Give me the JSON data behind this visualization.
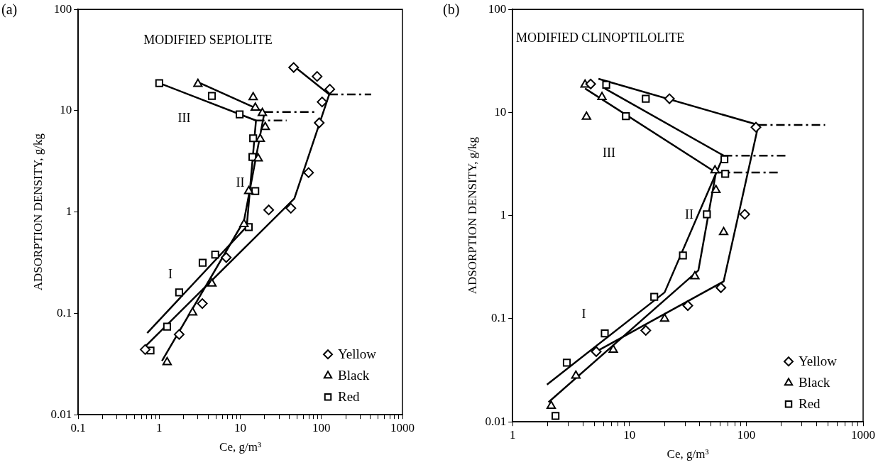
{
  "chart_data": [
    {
      "type": "scatter",
      "title": "(a)",
      "xlabel": "Ce, g/m³",
      "ylabel": "ADSORPTION DENSITY, g/kg",
      "log": "xy",
      "grid": false,
      "legend": "bottom right",
      "annotations": [
        "MODIFIED SEPIOLITE",
        "III",
        "II",
        "I"
      ],
      "xlim": [
        0.1,
        1000
      ],
      "ylim": [
        0.01,
        100
      ],
      "xticks": [
        0.1,
        {
          "value": 0.2,
          "label": null
        },
        {
          "value": 0.3,
          "label": null
        },
        {
          "value": 0.4,
          "label": null
        },
        {
          "value": 0.5,
          "label": null
        },
        {
          "value": 0.6,
          "label": null
        },
        {
          "value": 0.7,
          "label": null
        },
        {
          "value": 0.8,
          "label": null
        },
        {
          "value": 0.9,
          "label": null
        },
        1,
        {
          "value": 2,
          "label": null
        },
        {
          "value": 3,
          "label": null
        },
        {
          "value": 4,
          "label": null
        },
        {
          "value": 5,
          "label": null
        },
        {
          "value": 6,
          "label": null
        },
        {
          "value": 7,
          "label": null
        },
        {
          "value": 8,
          "label": null
        },
        {
          "value": 9,
          "label": null
        },
        10,
        {
          "value": 20,
          "label": null
        },
        {
          "value": 30,
          "label": null
        },
        {
          "value": 40,
          "label": null
        },
        {
          "value": 50,
          "label": null
        },
        {
          "value": 60,
          "label": null
        },
        {
          "value": 70,
          "label": null
        },
        {
          "value": 80,
          "label": null
        },
        {
          "value": 90,
          "label": null
        },
        100,
        {
          "value": 200,
          "label": null
        },
        {
          "value": 300,
          "label": null
        },
        {
          "value": 400,
          "label": null
        },
        {
          "value": 500,
          "label": null
        },
        {
          "value": 600,
          "label": null
        },
        {
          "value": 700,
          "label": null
        },
        {
          "value": 800,
          "label": null
        },
        {
          "value": 900,
          "label": null
        },
        1000
      ],
      "yticks": [
        0.01,
        0.1,
        1,
        10,
        100
      ],
      "series": [
        {
          "name": "Yellow",
          "type": "scatter",
          "marker": "diamond",
          "color": "#000000",
          "x": [
            45.5,
            88.5,
            127,
            102,
            94,
            69.5,
            42,
            22.4,
            6.7,
            3.4,
            1.76,
            0.67
          ],
          "values": [
            26.7,
            21.8,
            16.3,
            12.2,
            7.6,
            2.45,
            1.09,
            1.05,
            0.356,
            0.125,
            0.062,
            0.044
          ]
        },
        {
          "name": "Black",
          "type": "scatter",
          "marker": "triangle",
          "color": "#000000",
          "x": [
            3.0,
            14.4,
            15.3,
            18.7,
            20.3,
            17.6,
            16.6,
            12.7,
            11.1,
            4.46,
            2.58,
            1.25
          ],
          "values": [
            18.4,
            13.6,
            10.7,
            9.5,
            6.9,
            5.26,
            3.38,
            1.61,
            0.76,
            0.197,
            0.102,
            0.033
          ]
        },
        {
          "name": "Red",
          "type": "scatter",
          "marker": "square",
          "color": "#000000",
          "x": [
            1.0,
            4.46,
            9.8,
            14.4,
            14.1,
            15.3,
            12.7,
            4.9,
            3.43,
            1.76,
            1.25,
            0.78
          ],
          "values": [
            18.7,
            14.0,
            9.2,
            5.35,
            3.5,
            1.61,
            0.71,
            0.38,
            0.316,
            0.161,
            0.074,
            0.043
          ]
        },
        {
          "type": "line",
          "line_style": "solid",
          "color": "#000000",
          "x": [
            45.5,
            125,
            46.4,
            0.65
          ],
          "values": [
            27.6,
            14.5,
            1.36,
            0.046
          ]
        },
        {
          "type": "line",
          "line_style": "dashed",
          "color": "#000000",
          "x": [
            125,
            411
          ],
          "values": [
            14.5,
            14.5
          ]
        },
        {
          "type": "line",
          "line_style": "solid",
          "color": "#000000",
          "x": [
            3.2,
            19.9,
            11.1,
            1.08
          ],
          "values": [
            18.7,
            9.7,
            0.82,
            0.034
          ]
        },
        {
          "type": "line",
          "line_style": "dashed",
          "color": "#000000",
          "x": [
            19.9,
            81.7
          ],
          "values": [
            9.7,
            9.7
          ]
        },
        {
          "type": "line",
          "line_style": "solid",
          "color": "#000000",
          "x": [
            1.06,
            15.6,
            12.0,
            0.71
          ],
          "values": [
            18.4,
            8.0,
            0.72,
            0.064
          ]
        },
        {
          "type": "line",
          "line_style": "dashed",
          "color": "#000000",
          "x": [
            15.6,
            37.2
          ],
          "values": [
            8.0,
            8.0
          ]
        }
      ]
    },
    {
      "type": "scatter",
      "title": "(b)",
      "xlabel": "Ce, g/m³",
      "ylabel": "ADSORPTION DENSITY, g/kg",
      "log": "xy",
      "grid": false,
      "legend": "bottom right",
      "annotations": [
        "MODIFIED CLINOPTILOLITE",
        "III",
        "II",
        "I"
      ],
      "xlim": [
        1,
        1000
      ],
      "ylim": [
        0.01,
        100
      ],
      "xticks": [
        1,
        {
          "value": 2,
          "label": null
        },
        {
          "value": 3,
          "label": null
        },
        {
          "value": 4,
          "label": null
        },
        {
          "value": 5,
          "label": null
        },
        {
          "value": 6,
          "label": null
        },
        {
          "value": 7,
          "label": null
        },
        {
          "value": 8,
          "label": null
        },
        {
          "value": 9,
          "label": null
        },
        10,
        {
          "value": 20,
          "label": null
        },
        {
          "value": 30,
          "label": null
        },
        {
          "value": 40,
          "label": null
        },
        {
          "value": 50,
          "label": null
        },
        {
          "value": 60,
          "label": null
        },
        {
          "value": 70,
          "label": null
        },
        {
          "value": 80,
          "label": null
        },
        {
          "value": 90,
          "label": null
        },
        100,
        {
          "value": 200,
          "label": null
        },
        {
          "value": 300,
          "label": null
        },
        {
          "value": 400,
          "label": null
        },
        {
          "value": 500,
          "label": null
        },
        {
          "value": 600,
          "label": null
        },
        {
          "value": 700,
          "label": null
        },
        {
          "value": 800,
          "label": null
        },
        {
          "value": 900,
          "label": null
        },
        1000
      ],
      "yticks": [
        0.01,
        0.1,
        1,
        10,
        100
      ],
      "series": [
        {
          "name": "Yellow",
          "type": "scatter",
          "marker": "diamond",
          "color": "#000000",
          "x": [
            4.66,
            22,
            121,
            97,
            60.7,
            31.6,
            13.8,
            5.2
          ],
          "values": [
            18.9,
            13.6,
            7.2,
            1.03,
            0.2,
            0.134,
            0.077,
            0.048
          ]
        },
        {
          "name": "Black",
          "type": "scatter",
          "marker": "triangle",
          "color": "#000000",
          "x": [
            4.17,
            5.82,
            4.29,
            54,
            55,
            64,
            36.3,
            20,
            7.27,
            3.48,
            2.14
          ],
          "values": [
            18.6,
            14.1,
            9.1,
            2.75,
            1.77,
            0.69,
            0.258,
            0.1,
            0.05,
            0.028,
            0.0143
          ]
        },
        {
          "name": "Red",
          "type": "scatter",
          "marker": "square",
          "color": "#000000",
          "x": [
            6.33,
            13.8,
            9.33,
            65,
            66,
            46,
            28.7,
            16.3,
            6.15,
            2.91,
            2.33
          ],
          "values": [
            18.6,
            13.6,
            9.2,
            3.52,
            2.54,
            1.03,
            0.41,
            0.163,
            0.072,
            0.0375,
            0.0114
          ]
        },
        {
          "type": "line",
          "line_style": "solid",
          "color": "#000000",
          "x": [
            5.43,
            127,
            64,
            4.86
          ],
          "values": [
            21.2,
            7.57,
            0.23,
            0.046
          ]
        },
        {
          "type": "line",
          "line_style": "dashed",
          "color": "#000000",
          "x": [
            127,
            473
          ],
          "values": [
            7.57,
            7.57
          ]
        },
        {
          "type": "line",
          "line_style": "solid",
          "color": "#000000",
          "x": [
            6.15,
            64,
            20,
            1.97
          ],
          "values": [
            17.1,
            3.82,
            0.18,
            0.023
          ]
        },
        {
          "type": "line",
          "line_style": "dashed",
          "color": "#000000",
          "x": [
            64,
            230
          ],
          "values": [
            3.82,
            3.82
          ]
        },
        {
          "type": "line",
          "line_style": "solid",
          "color": "#000000",
          "x": [
            4.17,
            55,
            38.9,
            2.03
          ],
          "values": [
            17.1,
            2.62,
            0.294,
            0.0155
          ]
        },
        {
          "type": "line",
          "line_style": "dashed",
          "color": "#000000",
          "x": [
            55,
            197
          ],
          "values": [
            2.62,
            2.62
          ]
        }
      ]
    }
  ]
}
